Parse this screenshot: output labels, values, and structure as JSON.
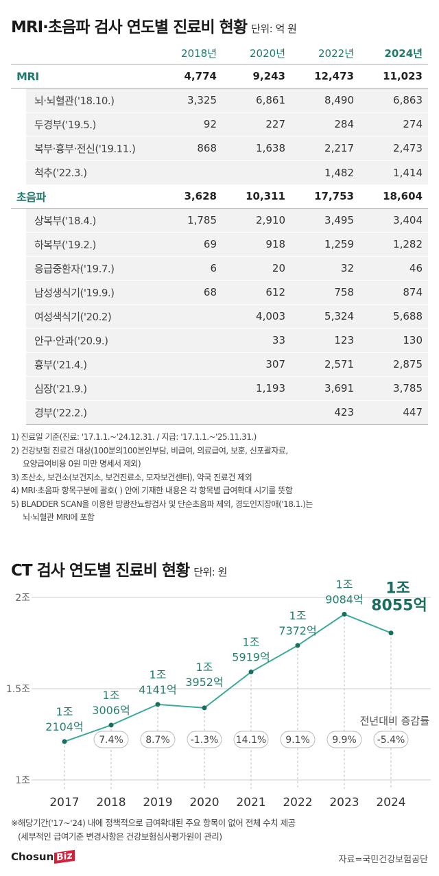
{
  "title1": {
    "text": "MRI·초음파 검사 연도별 진료비 현황",
    "unit": "단위: 억 원"
  },
  "table": {
    "columns": [
      "2018년",
      "2020년",
      "2022년",
      "2024년"
    ],
    "rows": [
      {
        "type": "main",
        "label": "MRI",
        "values": [
          "4,774",
          "9,243",
          "12,473",
          "11,023"
        ]
      },
      {
        "type": "sub",
        "label": "뇌·뇌혈관('18.10.)",
        "values": [
          "3,325",
          "6,861",
          "8,490",
          "6,863"
        ]
      },
      {
        "type": "sub",
        "label": "두경부('19.5.)",
        "values": [
          "92",
          "227",
          "284",
          "274"
        ]
      },
      {
        "type": "sub",
        "label": "복부·흉부·전신('19.11.)",
        "values": [
          "868",
          "1,638",
          "2,217",
          "2,473"
        ]
      },
      {
        "type": "sub",
        "label": "척추('22.3.)",
        "values": [
          "",
          "",
          "1,482",
          "1,414"
        ]
      },
      {
        "type": "main",
        "label": "초음파",
        "values": [
          "3,628",
          "10,311",
          "17,753",
          "18,604"
        ]
      },
      {
        "type": "sub",
        "label": "상복부('18.4.)",
        "values": [
          "1,785",
          "2,910",
          "3,495",
          "3,404"
        ]
      },
      {
        "type": "sub",
        "label": "하복부('19.2.)",
        "values": [
          "69",
          "918",
          "1,259",
          "1,282"
        ]
      },
      {
        "type": "sub",
        "label": "응급중환자('19.7.)",
        "values": [
          "6",
          "20",
          "32",
          "46"
        ]
      },
      {
        "type": "sub",
        "label": "남성생식기('19.9.)",
        "values": [
          "68",
          "612",
          "758",
          "874"
        ]
      },
      {
        "type": "sub",
        "label": "여성색식기('20.2)",
        "values": [
          "",
          "4,003",
          "5,324",
          "5,688"
        ]
      },
      {
        "type": "sub",
        "label": "안구·안과('20.9.)",
        "values": [
          "",
          "33",
          "123",
          "130"
        ]
      },
      {
        "type": "sub",
        "label": "흉부('21.4.)",
        "values": [
          "",
          "307",
          "2,571",
          "2,875"
        ]
      },
      {
        "type": "sub",
        "label": "심장('21.9.)",
        "values": [
          "",
          "1,193",
          "3,691",
          "3,785"
        ]
      },
      {
        "type": "sub",
        "label": "경부('22.2.)",
        "values": [
          "",
          "",
          "423",
          "447"
        ]
      }
    ]
  },
  "notes": [
    "1) 진료일 기준(진료: '17.1.1.~'24.12.31. / 지급: '17.1.1.~'25.11.31.)",
    "2) 건강보험 진료건 대상(100분의100본인부담, 비급여, 의료급여, 보훈, 신포괄자료,",
    "요양급여비용 0원 미만 명세서 제외)",
    "3) 조산소, 보건소(보건지소, 보건진료소, 모자보건센터), 약국 진료건 제외",
    "4) MRI·초음파 항목구분에 괄호(  ) 안에 기재한 내용은 각 항목별 급여확대 시기를 뜻함",
    "5) BLADDER SCAN을 이용한 방광잔뇨량검사 및 단순초음파 제외, 경도인지장애('18.1.)는",
    "뇌·뇌혈관 MRI에 포함"
  ],
  "title2": {
    "text": "CT 검사 연도별 진료비 현황",
    "unit": "단위: 원"
  },
  "chart_data": {
    "type": "line",
    "title": "CT 검사 연도별 진료비 현황",
    "unit": "단위: 원",
    "categories": [
      "2017",
      "2018",
      "2019",
      "2020",
      "2021",
      "2022",
      "2023",
      "2024"
    ],
    "values_eok": [
      12104,
      13006,
      14141,
      13952,
      15919,
      17372,
      19084,
      18055
    ],
    "value_labels": [
      [
        "1조",
        "2104억"
      ],
      [
        "1조",
        "3006억"
      ],
      [
        "1조",
        "4141억"
      ],
      [
        "1조",
        "3952억"
      ],
      [
        "1조",
        "5919억"
      ],
      [
        "1조",
        "7372억"
      ],
      [
        "1조",
        "9084억"
      ],
      [
        "1조",
        "8055억"
      ]
    ],
    "yticks": [
      "1조",
      "1.5조",
      "2조"
    ],
    "ylim_eok": [
      10000,
      20000
    ],
    "growth_label": "전년대비 증감률",
    "growth": [
      "7.4%",
      "8.7%",
      "-1.3%",
      "14.1%",
      "9.1%",
      "9.9%",
      "-5.4%"
    ],
    "grid": true,
    "colors": {
      "line": "#3aaa9c",
      "point": "#1a6e60",
      "label": "#2a7d70"
    }
  },
  "footnote": [
    "※해당기간('17~'24) 내에 정책적으로 급여확대된 주요 항목이 없어 전체 수치 제공",
    "(세부적인 급여기준 변경사항은 건강보험심사평가원이 관리)"
  ],
  "logo": {
    "text1": "Chosun",
    "text2": "Biz"
  },
  "source": "자료=국민건강보험공단"
}
